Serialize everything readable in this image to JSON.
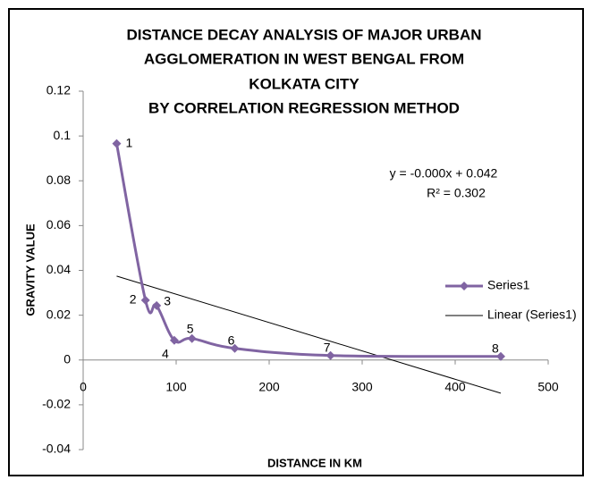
{
  "chart_data": {
    "type": "scatter",
    "title": [
      "DISTANCE DECAY ANALYSIS OF MAJOR URBAN",
      "AGGLOMERATION IN WEST BENGAL FROM",
      "KOLKATA CITY",
      "BY CORRELATION REGRESSION METHOD"
    ],
    "x_label": "DISTANCE IN KM",
    "y_label": "GRAVITY VALUE",
    "series": [
      {
        "name": "Series1",
        "color": "#8064a2",
        "x": [
          36,
          67,
          79,
          98,
          117,
          163,
          266,
          449
        ],
        "values": [
          0.0966,
          0.0267,
          0.0243,
          0.0088,
          0.0096,
          0.0052,
          0.002,
          0.0016
        ],
        "point_labels": [
          "1",
          "2",
          "3",
          "4",
          "5",
          "6",
          "7",
          "8"
        ]
      }
    ],
    "trendline": {
      "name": "Linear (Series1)",
      "color": "#000000",
      "equation": "y = -0.000x + 0.042",
      "r_squared": "R² = 0.302"
    },
    "xlim": [
      0,
      500
    ],
    "xticks": [
      0,
      100,
      200,
      300,
      400,
      500
    ],
    "ylim": [
      -0.04,
      0.12
    ],
    "yticks": [
      -0.04,
      -0.02,
      0,
      0.02,
      0.04,
      0.06,
      0.08,
      0.1,
      0.12
    ],
    "grid": false
  }
}
